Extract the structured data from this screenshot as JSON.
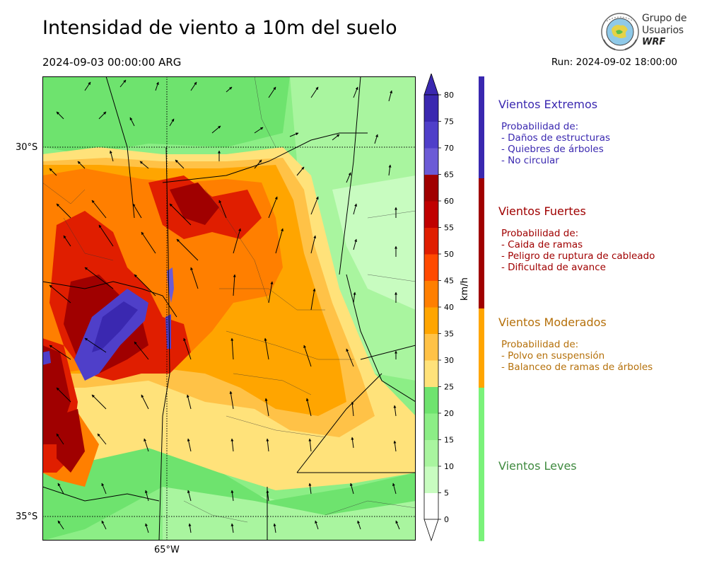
{
  "header": {
    "title": "Intensidad de viento a 10m del suelo",
    "valid_time": "2024-09-03 00:00:00 ARG",
    "run": "Run: 2024-09-02 18:00:00"
  },
  "logo": {
    "line1": "Grupo de",
    "line2": "Usuarios",
    "line3": "WRF",
    "icon": "globe-emblem-icon"
  },
  "map": {
    "lat_labels": [
      "30°S",
      "35°S"
    ],
    "lon_labels": [
      "65°W"
    ],
    "grid_style": "dotted"
  },
  "colorbar": {
    "unit": "km/h",
    "ticks": [
      "0",
      "5",
      "10",
      "15",
      "20",
      "25",
      "30",
      "35",
      "40",
      "45",
      "50",
      "55",
      "60",
      "65",
      "70",
      "75",
      "80"
    ],
    "colors": [
      "#ffffff",
      "#c8fcc0",
      "#a9f59f",
      "#8cee86",
      "#6ee36e",
      "#ffe27a",
      "#ffc247",
      "#ffa500",
      "#ff7f00",
      "#ff4a00",
      "#e01e00",
      "#c00000",
      "#a00000",
      "#6c5bd6",
      "#4f3fc9",
      "#3a28b0"
    ],
    "extend": "both"
  },
  "legend": {
    "categories": [
      {
        "name": "Vientos Extremos",
        "color": "#3a28b0",
        "desc_title": "Probabilidad de:",
        "items": [
          "- Daños de estructuras",
          "- Quiebres de árboles",
          "- No circular"
        ]
      },
      {
        "name": "Vientos Fuertes",
        "color": "#a00000",
        "desc_title": "Probabilidad de:",
        "items": [
          "- Caida de ramas",
          "- Peligro de ruptura de cableado",
          "- Dificultad de avance"
        ]
      },
      {
        "name": "Vientos Moderados",
        "color": "#ffa500",
        "desc_title": "Probabilidad de:",
        "items": [
          "- Polvo en suspensión",
          "- Balanceo de ramas de árboles"
        ]
      },
      {
        "name": "Vientos Leves",
        "color": "#7af27a",
        "desc_title": "",
        "items": []
      }
    ],
    "text_colors": [
      "#3a28b0",
      "#a00000",
      "#b5700a",
      "#3f8a3f"
    ]
  }
}
